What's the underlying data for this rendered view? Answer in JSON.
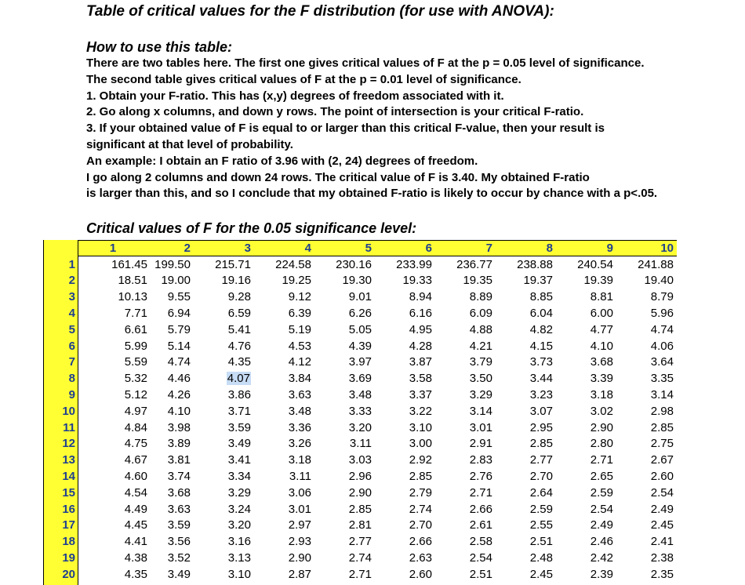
{
  "header": {
    "title": "Table of critical values for the F distribution (for use with ANOVA):"
  },
  "instructions": {
    "heading": "How to use this table:",
    "lines": [
      "There are two tables here. The first one gives critical values of F at the p = 0.05 level of significance.",
      "The second table gives critical values of F at the p = 0.01 level of significance.",
      "1. Obtain your F-ratio. This has (x,y) degrees of freedom associated with it.",
      "2. Go along x columns, and down y rows. The point of intersection is your critical F-ratio.",
      "3. If your obtained value of F is equal to or larger than this critical F-value, then your result is",
      "significant at that level of probability.",
      "An example: I obtain an F ratio of 3.96 with (2, 24) degrees of freedom.",
      "I go along 2 columns and down 24 rows. The critical value of F is 3.40. My obtained F-ratio",
      "is larger than this, and so I conclude that my obtained F-ratio is likely to occur by chance with a p<.05."
    ]
  },
  "table": {
    "caption": "Critical values of F for the 0.05 significance level:",
    "columns": [
      1,
      2,
      3,
      4,
      5,
      6,
      7,
      8,
      9,
      10
    ],
    "rows": [
      {
        "df": 1,
        "values": [
          "161.45",
          "199.50",
          "215.71",
          "224.58",
          "230.16",
          "233.99",
          "236.77",
          "238.88",
          "240.54",
          "241.88"
        ]
      },
      {
        "df": 2,
        "values": [
          "18.51",
          "19.00",
          "19.16",
          "19.25",
          "19.30",
          "19.33",
          "19.35",
          "19.37",
          "19.39",
          "19.40"
        ]
      },
      {
        "df": 3,
        "values": [
          "10.13",
          "9.55",
          "9.28",
          "9.12",
          "9.01",
          "8.94",
          "8.89",
          "8.85",
          "8.81",
          "8.79"
        ]
      },
      {
        "df": 4,
        "values": [
          "7.71",
          "6.94",
          "6.59",
          "6.39",
          "6.26",
          "6.16",
          "6.09",
          "6.04",
          "6.00",
          "5.96"
        ]
      },
      {
        "df": 5,
        "values": [
          "6.61",
          "5.79",
          "5.41",
          "5.19",
          "5.05",
          "4.95",
          "4.88",
          "4.82",
          "4.77",
          "4.74"
        ]
      },
      {
        "df": 6,
        "values": [
          "5.99",
          "5.14",
          "4.76",
          "4.53",
          "4.39",
          "4.28",
          "4.21",
          "4.15",
          "4.10",
          "4.06"
        ]
      },
      {
        "df": 7,
        "values": [
          "5.59",
          "4.74",
          "4.35",
          "4.12",
          "3.97",
          "3.87",
          "3.79",
          "3.73",
          "3.68",
          "3.64"
        ]
      },
      {
        "df": 8,
        "values": [
          "5.32",
          "4.46",
          "4.07",
          "3.84",
          "3.69",
          "3.58",
          "3.50",
          "3.44",
          "3.39",
          "3.35"
        ]
      },
      {
        "df": 9,
        "values": [
          "5.12",
          "4.26",
          "3.86",
          "3.63",
          "3.48",
          "3.37",
          "3.29",
          "3.23",
          "3.18",
          "3.14"
        ]
      },
      {
        "df": 10,
        "values": [
          "4.97",
          "4.10",
          "3.71",
          "3.48",
          "3.33",
          "3.22",
          "3.14",
          "3.07",
          "3.02",
          "2.98"
        ]
      },
      {
        "df": 11,
        "values": [
          "4.84",
          "3.98",
          "3.59",
          "3.36",
          "3.20",
          "3.10",
          "3.01",
          "2.95",
          "2.90",
          "2.85"
        ]
      },
      {
        "df": 12,
        "values": [
          "4.75",
          "3.89",
          "3.49",
          "3.26",
          "3.11",
          "3.00",
          "2.91",
          "2.85",
          "2.80",
          "2.75"
        ]
      },
      {
        "df": 13,
        "values": [
          "4.67",
          "3.81",
          "3.41",
          "3.18",
          "3.03",
          "2.92",
          "2.83",
          "2.77",
          "2.71",
          "2.67"
        ]
      },
      {
        "df": 14,
        "values": [
          "4.60",
          "3.74",
          "3.34",
          "3.11",
          "2.96",
          "2.85",
          "2.76",
          "2.70",
          "2.65",
          "2.60"
        ]
      },
      {
        "df": 15,
        "values": [
          "4.54",
          "3.68",
          "3.29",
          "3.06",
          "2.90",
          "2.79",
          "2.71",
          "2.64",
          "2.59",
          "2.54"
        ]
      },
      {
        "df": 16,
        "values": [
          "4.49",
          "3.63",
          "3.24",
          "3.01",
          "2.85",
          "2.74",
          "2.66",
          "2.59",
          "2.54",
          "2.49"
        ]
      },
      {
        "df": 17,
        "values": [
          "4.45",
          "3.59",
          "3.20",
          "2.97",
          "2.81",
          "2.70",
          "2.61",
          "2.55",
          "2.49",
          "2.45"
        ]
      },
      {
        "df": 18,
        "values": [
          "4.41",
          "3.56",
          "3.16",
          "2.93",
          "2.77",
          "2.66",
          "2.58",
          "2.51",
          "2.46",
          "2.41"
        ]
      },
      {
        "df": 19,
        "values": [
          "4.38",
          "3.52",
          "3.13",
          "2.90",
          "2.74",
          "2.63",
          "2.54",
          "2.48",
          "2.42",
          "2.38"
        ]
      },
      {
        "df": 20,
        "values": [
          "4.35",
          "3.49",
          "3.10",
          "2.87",
          "2.71",
          "2.60",
          "2.51",
          "2.45",
          "2.39",
          "2.35"
        ]
      }
    ]
  }
}
